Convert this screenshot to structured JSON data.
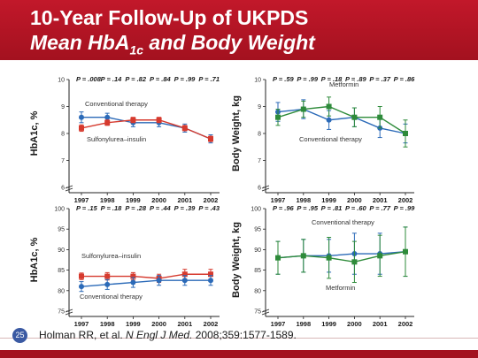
{
  "header": {
    "title_line1": "10-Year Follow-Up of UKPDS",
    "title_line2_pre": "Mean HbA",
    "title_line2_sub": "1c",
    "title_line2_post": " and Body Weight",
    "bg_color": "#b0141f"
  },
  "footer": {
    "page_number": "25",
    "citation_pre": "Holman RR, et al. ",
    "citation_journal": "N Engl J Med.",
    "citation_post": " 2008;359:1577-1589."
  },
  "chart_data": [
    {
      "type": "line",
      "ylabel": "HbA1c, %",
      "categories": [
        "1997",
        "1998",
        "1999",
        "2000",
        "2001",
        "2002"
      ],
      "ylim": [
        6,
        10
      ],
      "yticks": [
        "6",
        "7",
        "8",
        "9",
        "10"
      ],
      "pvalues": [
        "P = .008",
        "P = .14",
        "P = .82",
        "P = .84",
        "P = .99",
        "P = .71"
      ],
      "annotations": [
        "Conventional therapy",
        "Sulfonylurea–insulin"
      ],
      "series": [
        {
          "name": "Conventional therapy",
          "color": "#2b6ab8",
          "marker": "circle",
          "values": [
            8.6,
            8.6,
            8.4,
            8.4,
            8.2,
            7.8
          ],
          "err": [
            0.2,
            0.15,
            0.15,
            0.15,
            0.15,
            0.15
          ]
        },
        {
          "name": "Sulfonylurea–insulin",
          "color": "#d63a2e",
          "marker": "square",
          "values": [
            8.2,
            8.4,
            8.5,
            8.5,
            8.2,
            7.8
          ],
          "err": [
            0.12,
            0.1,
            0.1,
            0.1,
            0.1,
            0.1
          ]
        }
      ]
    },
    {
      "type": "line",
      "ylabel": "Body Weight, kg",
      "categories": [
        "1997",
        "1998",
        "1999",
        "2000",
        "2001",
        "2002"
      ],
      "ylim": [
        6,
        10
      ],
      "yticks": [
        "6",
        "7",
        "8",
        "9",
        "10"
      ],
      "pvalues": [
        "P = .59",
        "P = .99",
        "P = .18",
        "P = .89",
        "P = .37",
        "P = .86"
      ],
      "annotations": [
        "Metformin",
        "Conventional therapy"
      ],
      "series": [
        {
          "name": "Conventional therapy",
          "color": "#2b6ab8",
          "marker": "circle",
          "values": [
            8.8,
            8.9,
            8.5,
            8.6,
            8.2,
            8.0
          ],
          "err": [
            0.35,
            0.35,
            0.35,
            0.35,
            0.35,
            0.35
          ]
        },
        {
          "name": "Metformin",
          "color": "#2e8b3a",
          "marker": "square",
          "values": [
            8.6,
            8.9,
            9.0,
            8.6,
            8.6,
            8.0
          ],
          "err": [
            0.3,
            0.3,
            0.35,
            0.35,
            0.4,
            0.5
          ]
        }
      ]
    },
    {
      "type": "line",
      "ylabel": "HbA1c, %",
      "categories": [
        "1997",
        "1998",
        "1999",
        "2000",
        "2001",
        "2002"
      ],
      "ylim": [
        75,
        100
      ],
      "yticks": [
        "75",
        "80",
        "85",
        "90",
        "95",
        "100"
      ],
      "pvalues": [
        "P = .15",
        "P = .18",
        "P = .28",
        "P = .44",
        "P = .39",
        "P = .43"
      ],
      "annotations": [
        "Sulfonylurea–insulin",
        "Conventional therapy"
      ],
      "series": [
        {
          "name": "Sulfonylurea–insulin",
          "color": "#d63a2e",
          "marker": "square",
          "values": [
            83.5,
            83.5,
            83.5,
            83.0,
            84.0,
            84.0
          ],
          "err": [
            0.8,
            0.9,
            0.9,
            1.0,
            1.2,
            1.2
          ]
        },
        {
          "name": "Conventional therapy",
          "color": "#2b6ab8",
          "marker": "circle",
          "values": [
            81.0,
            81.5,
            82.0,
            82.5,
            82.5,
            82.5
          ],
          "err": [
            1.2,
            1.2,
            1.2,
            1.2,
            1.2,
            1.2
          ]
        }
      ]
    },
    {
      "type": "line",
      "ylabel": "Body Weight, kg",
      "categories": [
        "1997",
        "1998",
        "1999",
        "2000",
        "2001",
        "2002"
      ],
      "ylim": [
        75,
        100
      ],
      "yticks": [
        "75",
        "80",
        "85",
        "90",
        "95",
        "100"
      ],
      "pvalues": [
        "P = .96",
        "P = .95",
        "P = .81",
        "P = .60",
        "P = .77",
        "P = .99"
      ],
      "annotations": [
        "Conventional therapy",
        "Metformin"
      ],
      "series": [
        {
          "name": "Conventional therapy",
          "color": "#2b6ab8",
          "marker": "circle",
          "values": [
            88.0,
            88.5,
            88.5,
            89.0,
            89.0,
            89.5
          ],
          "err": [
            4,
            4,
            4,
            5,
            5,
            6
          ]
        },
        {
          "name": "Metformin",
          "color": "#2e8b3a",
          "marker": "square",
          "values": [
            88.0,
            88.5,
            88.0,
            87.0,
            88.5,
            89.5
          ],
          "err": [
            4,
            4,
            5,
            5,
            5,
            6
          ]
        }
      ]
    }
  ]
}
